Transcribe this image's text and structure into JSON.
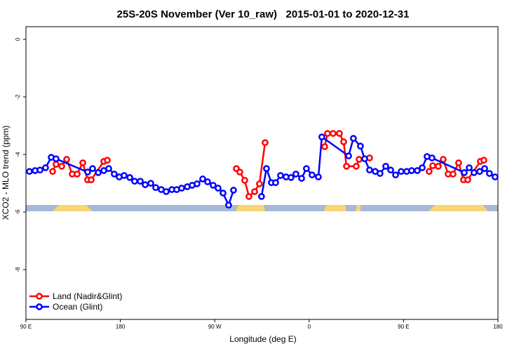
{
  "chart_data": {
    "type": "line",
    "title": "25S-20S November (Ver 10_raw)   2015-01-01 to 2020-12-31",
    "x_label": "Longitude (deg E)",
    "y_label": "XCO2 - MLO trend (ppm)",
    "xlim": [
      90,
      540
    ],
    "ylim": [
      -9.73,
      0.44
    ],
    "xticks": [
      {
        "value": 90,
        "label": "90 E"
      },
      180,
      {
        "value": 270,
        "label": "90 W"
      },
      {
        "value": 360,
        "label": "0"
      },
      {
        "value": 450,
        "label": "90 E"
      },
      {
        "value": 540,
        "label": "180"
      }
    ],
    "yticks": [
      0,
      -2,
      -4,
      -6,
      -8
    ],
    "grid": false,
    "legend": "bottom-left",
    "series": [
      {
        "name": "Land (Nadir&Glint)",
        "color": "#ff0000",
        "x": [
          115.4,
          118.7,
          124.1,
          128.8,
          134.1,
          138.8,
          144.2,
          148.8,
          152.2,
          164.2,
          167.6,
          null,
          290.6,
          293.9,
          298.6,
          302.6,
          308.0,
          312.6,
          318.0,
          null,
          374.8,
          377.5,
          382.8,
          388.9,
          392.9,
          395.6,
          404.9,
          407.6,
          417.6,
          null,
          474.4,
          477.8,
          483.1,
          487.8,
          492.5,
          497.2,
          502.5,
          507.2,
          511.2,
          523.2,
          526.6
        ],
        "values": [
          -4.59,
          -4.34,
          -4.41,
          -4.17,
          -4.68,
          -4.68,
          -4.29,
          -4.88,
          -4.88,
          -4.24,
          -4.2,
          null,
          -4.49,
          -4.61,
          -4.9,
          -5.46,
          -5.29,
          -5.02,
          -3.59,
          null,
          -3.73,
          -3.27,
          -3.27,
          -3.27,
          -3.56,
          -4.41,
          -4.41,
          -4.17,
          -4.12,
          null,
          -4.59,
          -4.39,
          -4.41,
          -4.17,
          -4.68,
          -4.68,
          -4.29,
          -4.88,
          -4.88,
          -4.24,
          -4.2
        ]
      },
      {
        "name": "Ocean (Glint)",
        "color": "#0000ff",
        "x": [
          93.3,
          98.7,
          103.4,
          108.7,
          114.1,
          118.7,
          148.8,
          153.5,
          158.9,
          164.2,
          168.9,
          174.2,
          178.9,
          183.6,
          189.0,
          193.6,
          199.0,
          203.7,
          209.0,
          213.7,
          219.0,
          223.7,
          229.1,
          233.7,
          238.4,
          243.8,
          248.5,
          253.1,
          258.5,
          263.2,
          268.5,
          273.2,
          277.9,
          283.2,
          287.9,
          null,
          314.6,
          319.3,
          324.0,
          328.0,
          332.7,
          338.0,
          342.7,
          347.4,
          352.8,
          357.4,
          362.8,
          368.8,
          372.1,
          397.6,
          402.2,
          408.9,
          412.9,
          417.6,
          423.0,
          427.6,
          433.0,
          437.7,
          442.4,
          447.7,
          453.0,
          457.7,
          463.1,
          467.8,
          472.4,
          477.1,
          507.9,
          512.6,
          517.2,
          522.6,
          527.3,
          531.9,
          537.3
        ],
        "values": [
          -4.59,
          -4.56,
          -4.54,
          -4.46,
          -4.1,
          -4.15,
          -4.61,
          -4.49,
          -4.63,
          -4.56,
          -4.49,
          -4.68,
          -4.78,
          -4.73,
          -4.8,
          -4.93,
          -4.93,
          -5.05,
          -5.0,
          -5.15,
          -5.22,
          -5.29,
          -5.22,
          -5.22,
          -5.17,
          -5.12,
          -5.07,
          -5.02,
          -4.85,
          -4.95,
          -5.07,
          -5.17,
          -5.34,
          -5.76,
          -5.24,
          null,
          -5.46,
          -4.49,
          -4.98,
          -4.98,
          -4.73,
          -4.78,
          -4.8,
          -4.68,
          -4.83,
          -4.49,
          -4.71,
          -4.78,
          -3.39,
          -4.05,
          -3.44,
          -3.71,
          -4.15,
          -4.54,
          -4.59,
          -4.66,
          -4.41,
          -4.54,
          -4.71,
          -4.59,
          -4.59,
          -4.56,
          -4.56,
          -4.46,
          -4.07,
          -4.12,
          -4.63,
          -4.46,
          -4.63,
          -4.59,
          -4.49,
          -4.66,
          -4.78
        ]
      }
    ]
  }
}
